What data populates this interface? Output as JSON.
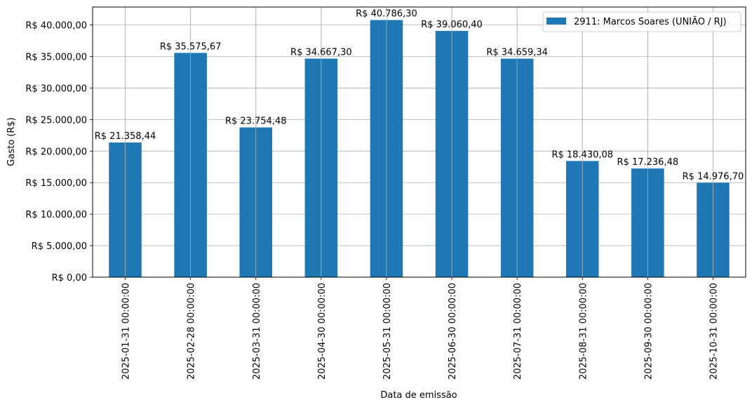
{
  "chart_data": {
    "type": "bar",
    "title": "",
    "xlabel": "Data de emissão",
    "ylabel": "Gasto (R$)",
    "ylim": [
      0,
      42850
    ],
    "grid": true,
    "legend_position": "upper right",
    "categories": [
      "2025-01-31 00:00:00",
      "2025-02-28 00:00:00",
      "2025-03-31 00:00:00",
      "2025-04-30 00:00:00",
      "2025-05-31 00:00:00",
      "2025-06-30 00:00:00",
      "2025-07-31 00:00:00",
      "2025-08-31 00:00:00",
      "2025-09-30 00:00:00",
      "2025-10-31 00:00:00"
    ],
    "series": [
      {
        "name": "2911: Marcos Soares (UNIÃO / RJ)",
        "color": "#1f77b4",
        "values": [
          21358.44,
          35575.67,
          23754.48,
          34667.3,
          40786.3,
          39060.4,
          34659.34,
          18430.08,
          17236.48,
          14976.7
        ],
        "labels": [
          "R$ 21.358,44",
          "R$ 35.575,67",
          "R$ 23.754,48",
          "R$ 34.667,30",
          "R$ 40.786,30",
          "R$ 39.060,40",
          "R$ 34.659,34",
          "R$ 18.430,08",
          "R$ 17.236,48",
          "R$ 14.976,70"
        ]
      }
    ],
    "yticks": [
      0,
      5000,
      10000,
      15000,
      20000,
      25000,
      30000,
      35000,
      40000
    ],
    "ytick_labels": [
      "R$ 0,00",
      "R$ 5.000,00",
      "R$ 10.000,00",
      "R$ 15.000,00",
      "R$ 20.000,00",
      "R$ 25.000,00",
      "R$ 30.000,00",
      "R$ 35.000,00",
      "R$ 40.000,00"
    ]
  },
  "colors": {
    "bar": "#1f77b4",
    "grid": "#b0b0b0",
    "axis": "#000000"
  }
}
